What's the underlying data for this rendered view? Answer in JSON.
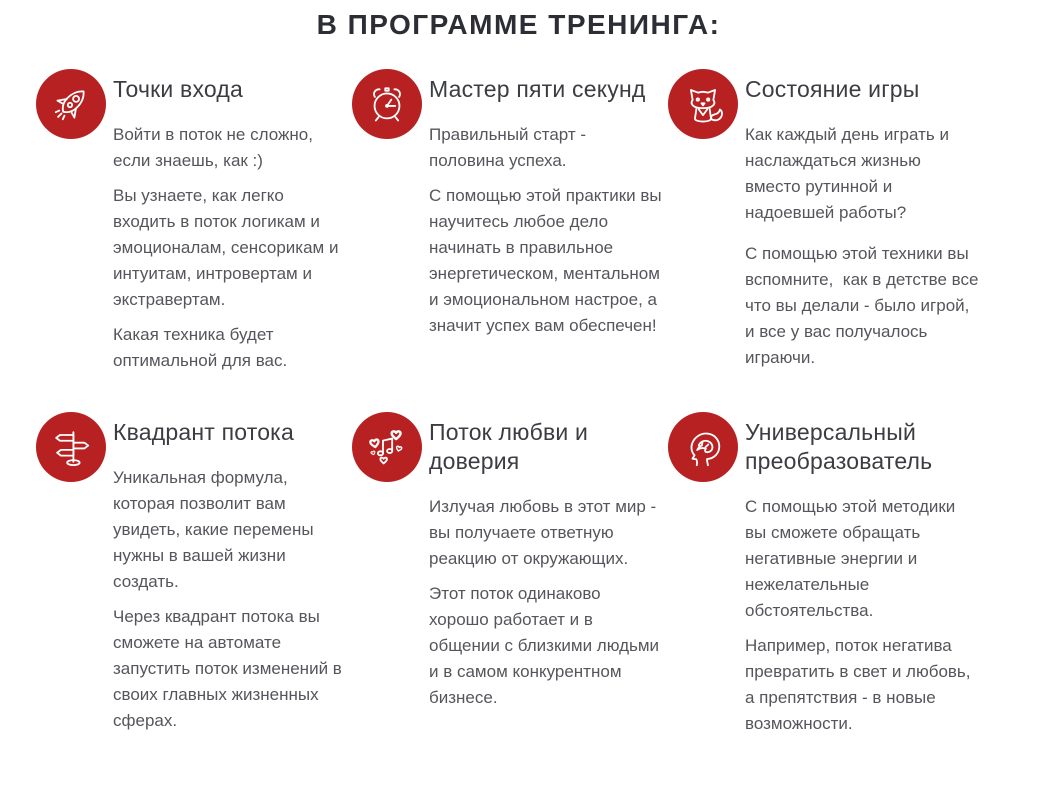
{
  "page": {
    "title": "В ПРОГРАММЕ ТРЕНИНГА:"
  },
  "theme": {
    "accent_red": "#b82122",
    "title_color": "#2d2e35",
    "heading_color": "#3c3d42",
    "body_color": "#55565c",
    "icon_stroke": "#ffffff",
    "background": "#ffffff"
  },
  "cards": [
    {
      "icon": "rocket-icon",
      "title": "Точки входа",
      "paragraphs": [
        "Войти в поток не сложно, если знаешь, как :)",
        "Вы узнаете, как легко входить в поток логикам и эмоционалам, сенсорикам и интуитам, интровертам и экстравертам.",
        "Какая техника будет оптимальной для вас."
      ]
    },
    {
      "icon": "alarm-clock-icon",
      "title": "Мастер пяти секунд",
      "paragraphs": [
        "Правильный старт - половина успеха.",
        "С помощью этой практики вы научитесь любое дело начинать в правильное энергетическом, ментальном и эмоциональном настрое, а значит успех вам обеспечен!"
      ]
    },
    {
      "icon": "fox-icon",
      "title": "Состояние игры",
      "paragraphs": [
        "Как каждый день играть и наслаждаться жизнью вместо рутинной и надоевшей работы?",
        "",
        "С помощью этой техники вы вспомните,  как в детстве все что вы делали - было игрой, и все у вас получалось играючи."
      ]
    },
    {
      "icon": "signpost-icon",
      "title": "Квадрант потока",
      "paragraphs": [
        "Уникальная формула, которая позволит вам увидеть, какие перемены нужны в вашей жизни создать.",
        "Через квадрант потока вы сможете на автомате запустить поток изменений в своих главных жизненных сферах."
      ]
    },
    {
      "icon": "hearts-icon",
      "title": "Поток любви и доверия",
      "paragraphs": [
        "Излучая любовь в этот мир - вы получаете ответную реакцию от окружающих.",
        "Этот поток одинаково хорошо работает и в общении с близкими людьми и в самом конкурентном бизнесе."
      ]
    },
    {
      "icon": "brain-icon",
      "title": "Универсальный преобразователь",
      "paragraphs": [
        "С помощью этой методики вы сможете обращать негативные энергии и нежелательные обстоятельства.",
        "Например, поток негатива превратить в свет и любовь, а препятствия - в новые возможности."
      ]
    }
  ]
}
